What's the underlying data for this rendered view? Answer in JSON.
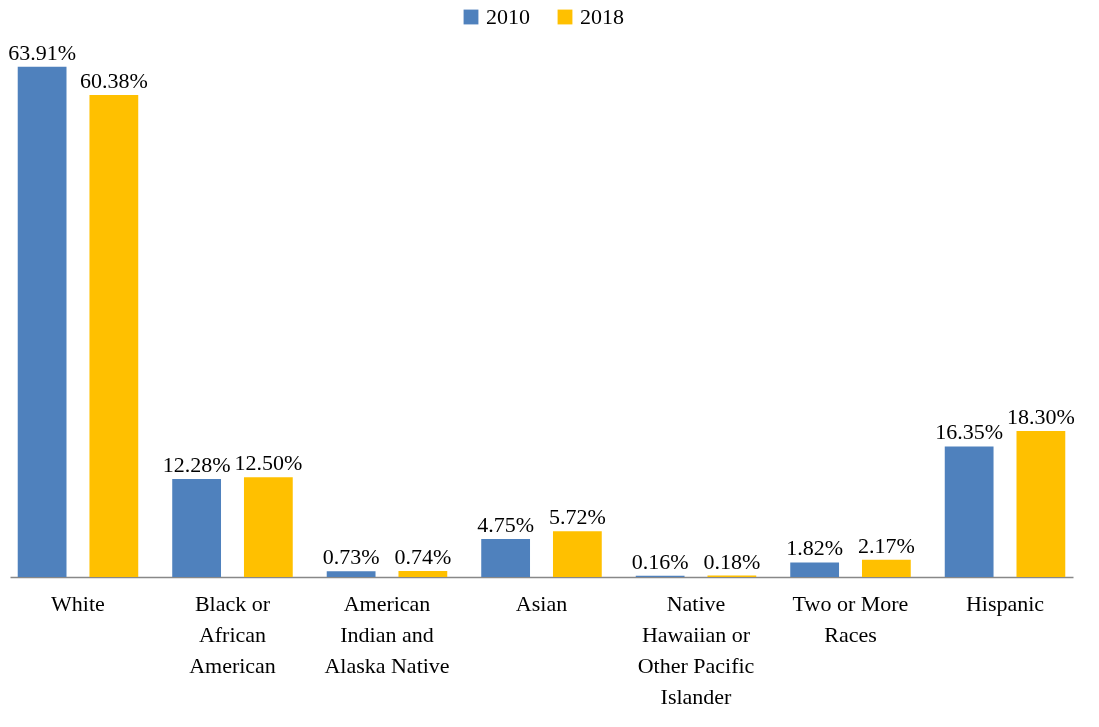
{
  "chart_data": {
    "type": "bar",
    "categories": [
      "White",
      "Black or African American",
      "American Indian and Alaska Native",
      "Asian",
      "Native Hawaiian or Other Pacific Islander",
      "Two or More Races",
      "Hispanic"
    ],
    "series": [
      {
        "name": "2010",
        "color": "#4f81bd",
        "values": [
          63.91,
          12.28,
          0.73,
          4.75,
          0.16,
          1.82,
          16.35
        ],
        "value_labels": [
          "63.91%",
          "12.28%",
          "0.73%",
          "4.75%",
          "0.16%",
          "1.82%",
          "16.35%"
        ]
      },
      {
        "name": "2018",
        "color": "#ffc000",
        "values": [
          60.38,
          12.5,
          0.74,
          5.72,
          0.18,
          2.17,
          18.3
        ],
        "value_labels": [
          "60.38%",
          "12.50%",
          "0.74%",
          "5.72%",
          "0.18%",
          "2.17%",
          "18.30%"
        ]
      }
    ],
    "legend": "top"
  }
}
